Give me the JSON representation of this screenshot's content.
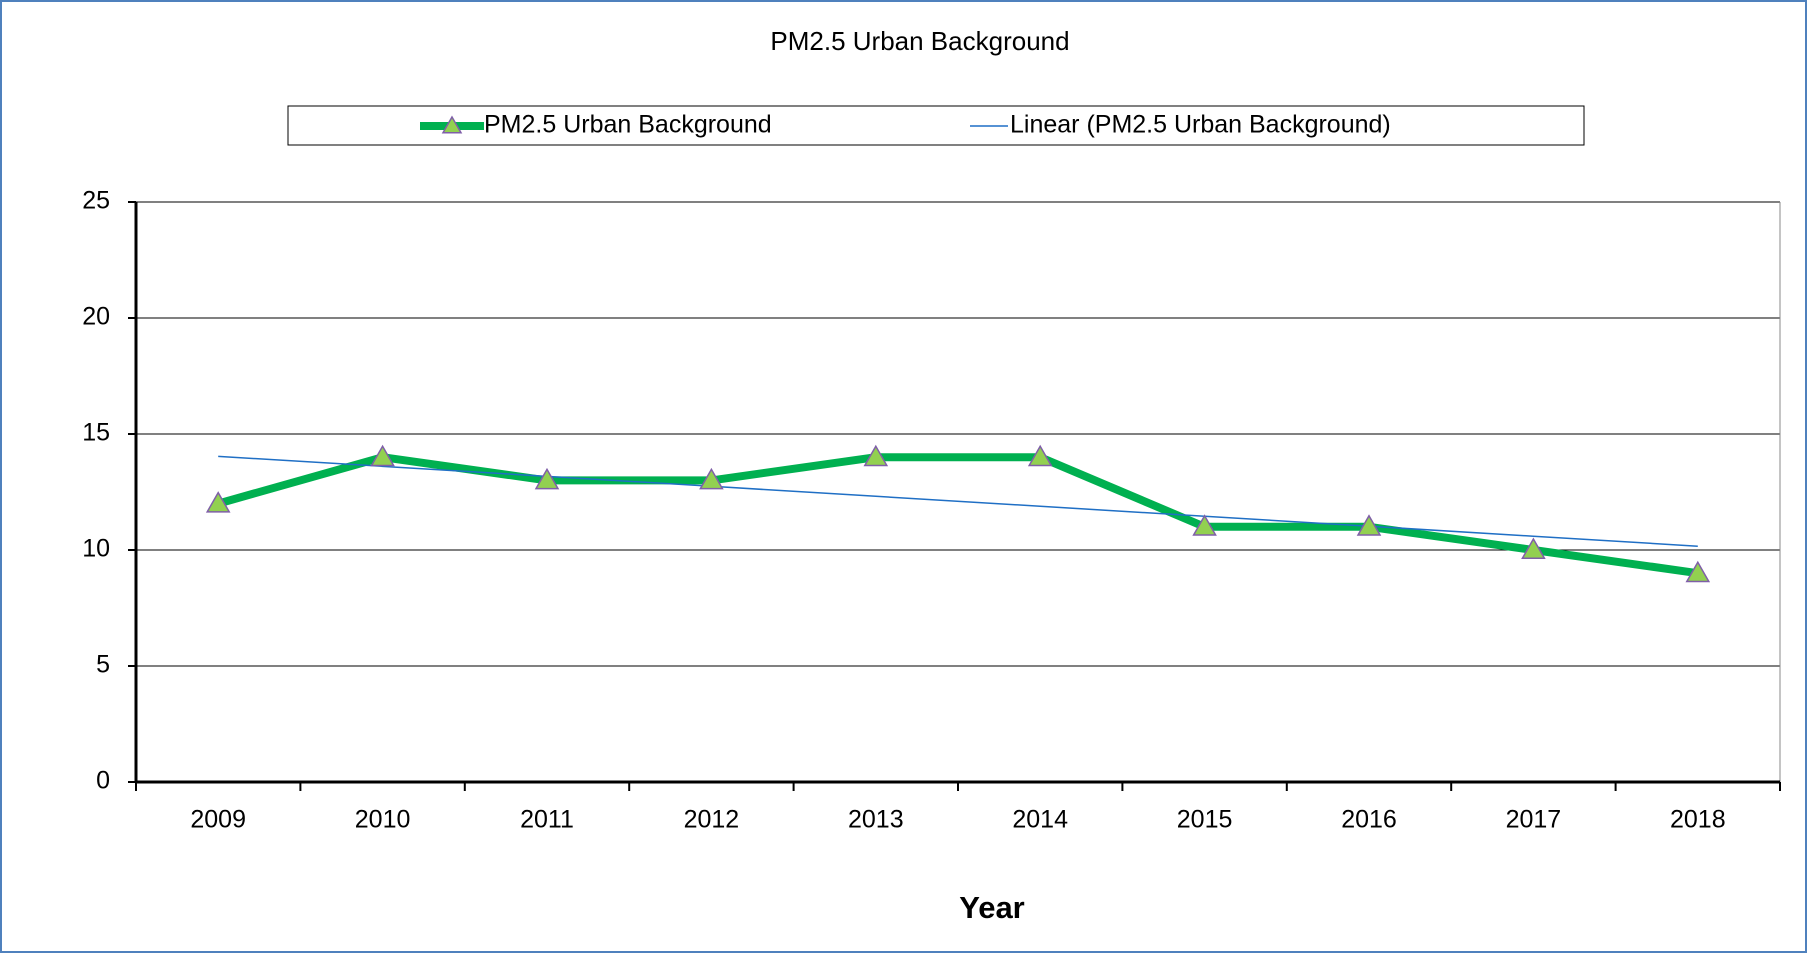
{
  "chart_data": {
    "type": "line",
    "title": "PM2.5 Urban Background",
    "x_label": "Year",
    "categories": [
      "2009",
      "2010",
      "2011",
      "2012",
      "2013",
      "2014",
      "2015",
      "2016",
      "2017",
      "2018"
    ],
    "series": [
      {
        "name": "PM2.5 Urban Background",
        "color": "#00b050",
        "marker_color": "#92d050",
        "marker_edge": "#7f5fa8",
        "values": [
          12,
          14,
          13,
          13,
          14,
          14,
          11,
          11,
          10,
          9
        ]
      }
    ],
    "trendline": {
      "type": "linear",
      "name": "Linear (PM2.5 Urban Background)",
      "color": "#1f6fc5"
    },
    "ylim": [
      0,
      25
    ],
    "yticks": [
      0,
      5,
      10,
      15,
      20,
      25
    ],
    "grid": true,
    "legend": "top"
  }
}
